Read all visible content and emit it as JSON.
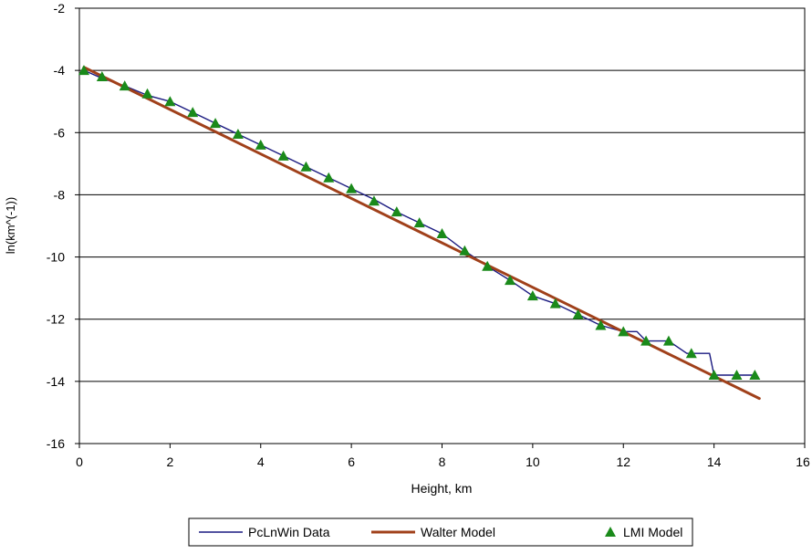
{
  "chart_data": {
    "type": "line",
    "title": "",
    "xlabel": "Height, km",
    "ylabel": "ln(km^(-1))",
    "xlim": [
      0,
      16
    ],
    "ylim": [
      -16,
      -2
    ],
    "x_ticks": [
      0,
      2,
      4,
      6,
      8,
      10,
      12,
      14,
      16
    ],
    "y_ticks": [
      -16,
      -14,
      -12,
      -10,
      -8,
      -6,
      -4,
      -2
    ],
    "x_tick_labels": [
      "0",
      "2",
      "4",
      "6",
      "8",
      "10",
      "12",
      "14",
      "16"
    ],
    "y_tick_labels": [
      "-16",
      "-14",
      "-12",
      "-10",
      "-8",
      "-6",
      "-4",
      "-2"
    ],
    "grid": "horizontal",
    "legend_placement": "bottom",
    "series": [
      {
        "name": "PcLnWin Data",
        "kind": "line",
        "color": "#1a1a80",
        "x": [
          0.1,
          0.5,
          1.0,
          1.5,
          2.0,
          2.5,
          3.0,
          3.5,
          4.0,
          4.5,
          5.0,
          5.5,
          6.0,
          6.5,
          7.0,
          7.5,
          8.0,
          8.5,
          9.0,
          9.5,
          10.0,
          10.5,
          11.0,
          11.5,
          12.0,
          12.3,
          12.5,
          13.0,
          13.4,
          13.9,
          14.0,
          14.5,
          14.9
        ],
        "y": [
          -4.0,
          -4.25,
          -4.5,
          -4.8,
          -5.0,
          -5.35,
          -5.7,
          -6.05,
          -6.4,
          -6.75,
          -7.1,
          -7.45,
          -7.8,
          -8.15,
          -8.55,
          -8.9,
          -9.25,
          -9.8,
          -10.3,
          -10.75,
          -11.25,
          -11.5,
          -11.85,
          -12.2,
          -12.4,
          -12.4,
          -12.7,
          -12.7,
          -13.1,
          -13.1,
          -13.8,
          -13.8,
          -13.8
        ]
      },
      {
        "name": "Walter Model",
        "kind": "line",
        "color": "#a0401a",
        "x": [
          0.1,
          15.0
        ],
        "y": [
          -3.9,
          -14.55
        ]
      },
      {
        "name": "LMI Model",
        "kind": "scatter",
        "marker": "triangle",
        "color": "#1a8a1a",
        "x": [
          0.1,
          0.5,
          1.0,
          1.5,
          2.0,
          2.5,
          3.0,
          3.5,
          4.0,
          4.5,
          5.0,
          5.5,
          6.0,
          6.5,
          7.0,
          7.5,
          8.0,
          8.5,
          9.0,
          9.5,
          10.0,
          10.5,
          11.0,
          11.5,
          12.0,
          12.5,
          13.0,
          13.5,
          14.0,
          14.5,
          14.9
        ],
        "y": [
          -4.0,
          -4.2,
          -4.5,
          -4.75,
          -5.0,
          -5.35,
          -5.7,
          -6.05,
          -6.4,
          -6.75,
          -7.1,
          -7.45,
          -7.8,
          -8.2,
          -8.55,
          -8.9,
          -9.25,
          -9.8,
          -10.3,
          -10.75,
          -11.25,
          -11.5,
          -11.85,
          -12.2,
          -12.4,
          -12.7,
          -12.7,
          -13.1,
          -13.8,
          -13.8,
          -13.8
        ]
      }
    ]
  }
}
